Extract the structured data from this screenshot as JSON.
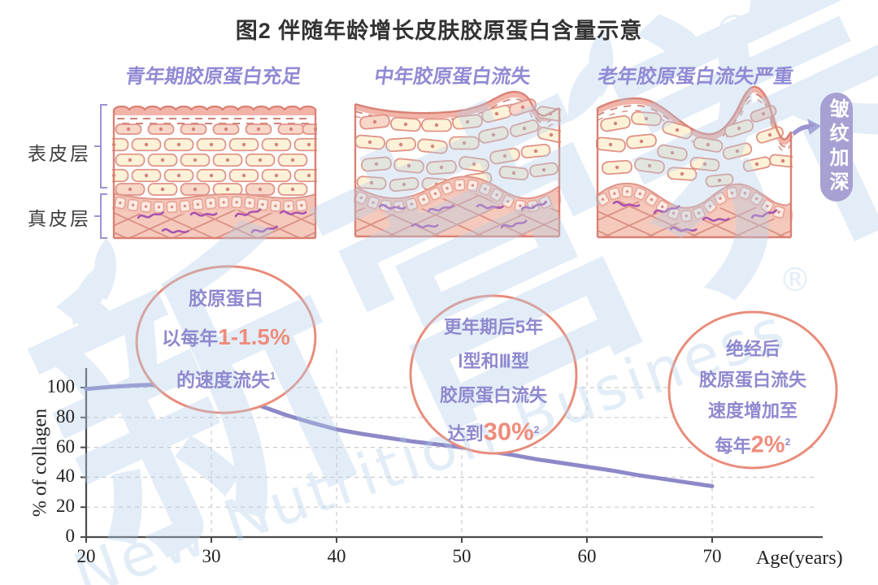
{
  "title": "图2 伴随年龄增长皮肤胶原蛋白含量示意",
  "panels": [
    {
      "label": "青年期胶原蛋白充足"
    },
    {
      "label": "中年胶原蛋白流失"
    },
    {
      "label": "老年胶原蛋白流失严重"
    }
  ],
  "layer_labels": {
    "epidermis": "表皮层",
    "dermis": "真皮层"
  },
  "wrinkle_tag": "皱纹加深",
  "annotations": [
    {
      "lines": [
        [
          {
            "t": "胶原蛋白"
          }
        ],
        [
          {
            "t": "以每年"
          },
          {
            "t": "1-1.5%",
            "accent": true
          }
        ],
        [
          {
            "t": "的速度流失"
          },
          {
            "t": "1",
            "sup": true
          }
        ]
      ]
    },
    {
      "lines": [
        [
          {
            "t": "更年期后5年"
          }
        ],
        [
          {
            "t": "Ⅰ型和Ⅲ型"
          }
        ],
        [
          {
            "t": "胶原蛋白流失"
          }
        ],
        [
          {
            "t": "达到"
          },
          {
            "t": "30%",
            "accent": true,
            "big": true
          },
          {
            "t": "2",
            "sup": true
          }
        ]
      ]
    },
    {
      "lines": [
        [
          {
            "t": "绝经后"
          }
        ],
        [
          {
            "t": "胶原蛋白流失"
          }
        ],
        [
          {
            "t": "速度增加至"
          }
        ],
        [
          {
            "t": "每年"
          },
          {
            "t": "2%",
            "accent": true,
            "big": true
          },
          {
            "t": "2",
            "sup": true
          }
        ]
      ]
    }
  ],
  "chart_data": {
    "type": "line",
    "series": [
      {
        "name": "% of collagen",
        "points": [
          [
            20,
            99
          ],
          [
            22,
            100.5
          ],
          [
            24,
            101.5
          ],
          [
            26,
            102
          ],
          [
            28,
            101
          ],
          [
            30,
            98.5
          ],
          [
            32,
            93
          ],
          [
            34,
            87.5
          ],
          [
            36,
            81.5
          ],
          [
            38,
            76.5
          ],
          [
            40,
            72
          ],
          [
            42,
            69
          ],
          [
            44,
            66.5
          ],
          [
            46,
            64
          ],
          [
            48,
            62
          ],
          [
            50,
            60
          ],
          [
            52,
            57.5
          ],
          [
            54,
            55
          ],
          [
            56,
            52
          ],
          [
            58,
            49.5
          ],
          [
            60,
            47
          ],
          [
            62,
            44.5
          ],
          [
            64,
            41.5
          ],
          [
            66,
            39
          ],
          [
            68,
            36.5
          ],
          [
            70,
            34
          ]
        ]
      }
    ],
    "xlabel": "Age(years)",
    "ylabel": "% of collagen",
    "x_ticks": [
      20,
      30,
      40,
      50,
      60,
      70
    ],
    "y_ticks": [
      0,
      20,
      40,
      60,
      80,
      100
    ],
    "xlim": [
      20,
      70
    ],
    "ylim": [
      0,
      100
    ],
    "grid": "dashed",
    "line_color": "#8d89c8"
  },
  "watermark": {
    "cn": "新营养",
    "en": "New Nutrition Business",
    "reg": "®"
  }
}
